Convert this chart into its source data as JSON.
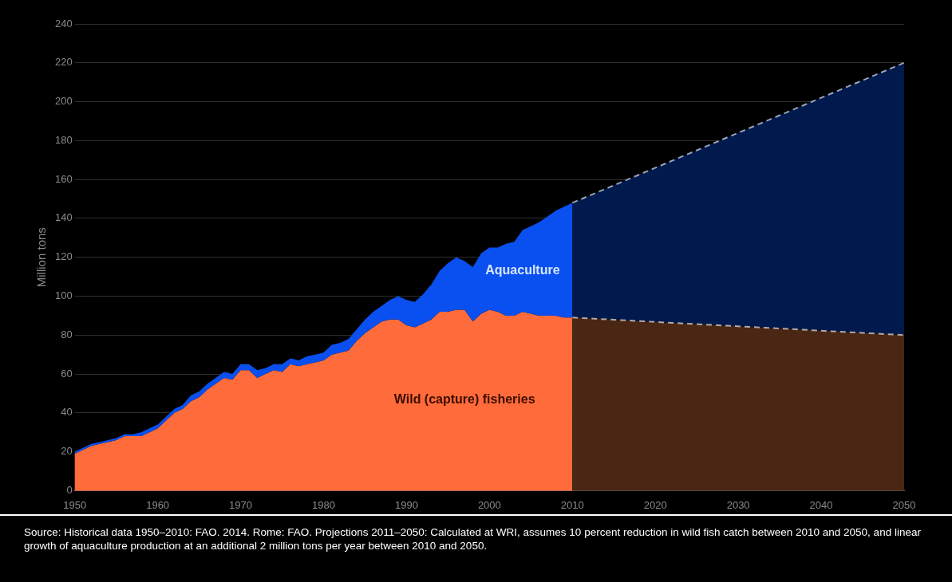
{
  "chart_data": {
    "type": "area",
    "stacked": true,
    "ylabel": "Million tons",
    "xlim": [
      1950,
      2050
    ],
    "xticks": [
      1950,
      1960,
      1970,
      1980,
      1990,
      2000,
      2010,
      2020,
      2030,
      2040,
      2050
    ],
    "ylim": [
      0,
      240
    ],
    "yticks": [
      0,
      20,
      40,
      60,
      80,
      100,
      120,
      140,
      160,
      180,
      200,
      220,
      240
    ],
    "grid": "y",
    "legend": false,
    "x": [
      1950,
      1951,
      1952,
      1953,
      1954,
      1955,
      1956,
      1957,
      1958,
      1959,
      1960,
      1961,
      1962,
      1963,
      1964,
      1965,
      1966,
      1967,
      1968,
      1969,
      1970,
      1971,
      1972,
      1973,
      1974,
      1975,
      1976,
      1977,
      1978,
      1979,
      1980,
      1981,
      1982,
      1983,
      1984,
      1985,
      1986,
      1987,
      1988,
      1989,
      1990,
      1991,
      1992,
      1993,
      1994,
      1995,
      1996,
      1997,
      1998,
      1999,
      2000,
      2001,
      2002,
      2003,
      2004,
      2005,
      2006,
      2007,
      2008,
      2009,
      2010,
      2010,
      2050
    ],
    "series": [
      {
        "name": "Wild (capture) fisheries",
        "color": "#ff6b3a",
        "values": [
          19,
          21,
          23,
          24,
          25,
          26,
          28,
          28,
          28,
          30,
          32,
          36,
          40,
          42,
          46,
          48,
          52,
          55,
          58,
          57,
          62,
          62,
          58,
          60,
          62,
          61,
          65,
          64,
          65,
          66,
          67,
          70,
          71,
          72,
          77,
          81,
          84,
          87,
          88,
          88,
          85,
          84,
          86,
          88,
          92,
          92,
          93,
          93,
          87,
          91,
          93,
          92,
          90,
          90,
          92,
          91,
          90,
          90,
          90,
          89,
          89,
          null,
          null
        ]
      },
      {
        "name": "Aquaculture",
        "color": "#0a50f0",
        "values": [
          1,
          1,
          1,
          1,
          1,
          1,
          1,
          1,
          2,
          2,
          2,
          2,
          2,
          2,
          3,
          3,
          3,
          3,
          3,
          3,
          3,
          3,
          4,
          3,
          3,
          4,
          3,
          3,
          4,
          4,
          4,
          5,
          5,
          6,
          6,
          7,
          8,
          8,
          10,
          12,
          13,
          13,
          15,
          18,
          21,
          25,
          27,
          25,
          28,
          31,
          32,
          33,
          37,
          38,
          42,
          45,
          48,
          51,
          54,
          57,
          59,
          null,
          null
        ]
      },
      {
        "color": "#4a2614",
        "line_style": "dashed",
        "values": [
          null,
          null,
          null,
          null,
          null,
          null,
          null,
          null,
          null,
          null,
          null,
          null,
          null,
          null,
          null,
          null,
          null,
          null,
          null,
          null,
          null,
          null,
          null,
          null,
          null,
          null,
          null,
          null,
          null,
          null,
          null,
          null,
          null,
          null,
          null,
          null,
          null,
          null,
          null,
          null,
          null,
          null,
          null,
          null,
          null,
          null,
          null,
          null,
          null,
          null,
          null,
          null,
          null,
          null,
          null,
          null,
          null,
          null,
          null,
          null,
          null,
          89,
          80
        ]
      },
      {
        "color": "#001a4d",
        "line_style": "dashed",
        "values": [
          null,
          null,
          null,
          null,
          null,
          null,
          null,
          null,
          null,
          null,
          null,
          null,
          null,
          null,
          null,
          null,
          null,
          null,
          null,
          null,
          null,
          null,
          null,
          null,
          null,
          null,
          null,
          null,
          null,
          null,
          null,
          null,
          null,
          null,
          null,
          null,
          null,
          null,
          null,
          null,
          null,
          null,
          null,
          null,
          null,
          null,
          null,
          null,
          null,
          null,
          null,
          null,
          null,
          null,
          null,
          null,
          null,
          null,
          null,
          null,
          null,
          59,
          140
        ]
      }
    ],
    "annotations": [
      "Source: Historical data 1950–2010: FAO. 2014. Rome: FAO. Projections 2011–2050: Calculated at WRI, assumes 10 percent reduction in wild fish catch between 2010 and 2050, and linear growth of aquaculture production at an additional 2 million tons per year between 2010 and 2050."
    ]
  }
}
